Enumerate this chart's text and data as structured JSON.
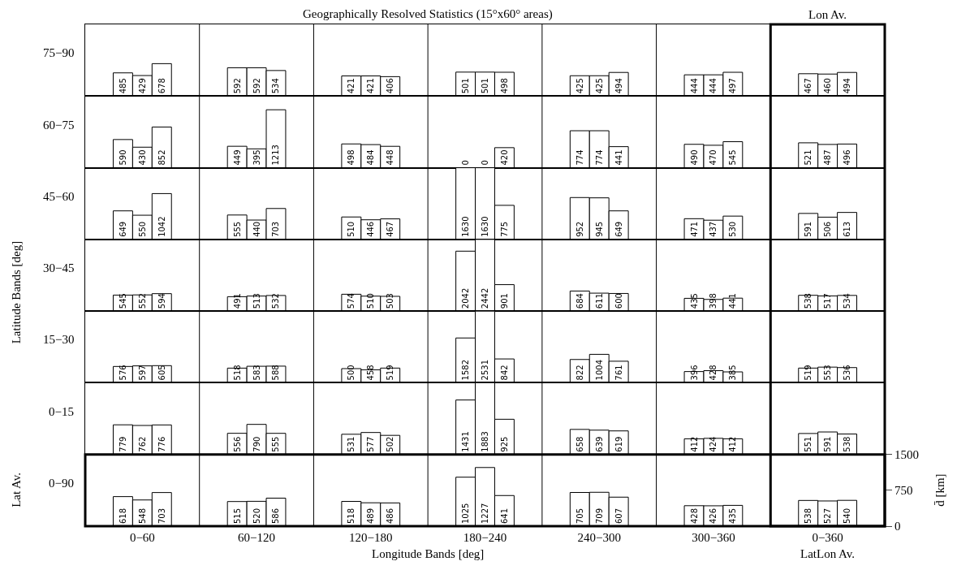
{
  "chart_data": [
    {
      "type": "bar",
      "title": "Geographically Resolved Statistics (15°x60° areas)",
      "categories": [
        null,
        null,
        null,
        null,
        null,
        null,
        null
      ],
      "data_labels": true,
      "annotations": [
        "75−90",
        "Lon Av."
      ],
      "series": [
        {
          "color": "#ffffff",
          "values": [
            485,
            592,
            421,
            501,
            425,
            444,
            467
          ]
        },
        {
          "color": "#ffffff",
          "values": [
            429,
            592,
            421,
            501,
            425,
            444,
            460
          ]
        },
        {
          "color": "#ffffff",
          "values": [
            678,
            534,
            406,
            498,
            494,
            497,
            494
          ]
        }
      ]
    },
    {
      "type": "bar",
      "categories": [
        null,
        null,
        null,
        null,
        null,
        null,
        null
      ],
      "data_labels": true,
      "annotations": [
        "60−75"
      ],
      "series": [
        {
          "color": "#ffffff",
          "values": [
            590,
            449,
            498,
            0,
            774,
            490,
            521
          ]
        },
        {
          "color": "#ffffff",
          "values": [
            430,
            395,
            484,
            0,
            774,
            470,
            487
          ]
        },
        {
          "color": "#ffffff",
          "values": [
            852,
            1213,
            448,
            420,
            441,
            545,
            496
          ]
        }
      ]
    },
    {
      "type": "bar",
      "categories": [
        null,
        null,
        null,
        null,
        null,
        null,
        null
      ],
      "data_labels": true,
      "annotations": [
        "45−60"
      ],
      "series": [
        {
          "color": "#ffffff",
          "values": [
            649,
            555,
            510,
            1630,
            952,
            471,
            591
          ]
        },
        {
          "color": "#ffffff",
          "values": [
            550,
            440,
            446,
            1630,
            945,
            437,
            506
          ]
        },
        {
          "color": "#ffffff",
          "values": [
            1042,
            703,
            467,
            775,
            649,
            530,
            613
          ]
        }
      ]
    },
    {
      "type": "bar",
      "categories": [
        null,
        null,
        null,
        null,
        null,
        null,
        null
      ],
      "data_labels": true,
      "annotations": [
        "30−45",
        "Latitude Bands [deg]"
      ],
      "series": [
        {
          "color": "#ffffff",
          "values": [
            545,
            491,
            574,
            2042,
            684,
            435,
            538
          ]
        },
        {
          "color": "#ffffff",
          "values": [
            552,
            513,
            510,
            2442,
            611,
            398,
            517
          ]
        },
        {
          "color": "#ffffff",
          "values": [
            594,
            532,
            503,
            901,
            600,
            441,
            534
          ]
        }
      ]
    },
    {
      "type": "bar",
      "categories": [
        null,
        null,
        null,
        null,
        null,
        null,
        null
      ],
      "data_labels": true,
      "annotations": [
        "15−30"
      ],
      "series": [
        {
          "color": "#ffffff",
          "values": [
            576,
            518,
            500,
            1582,
            822,
            396,
            519
          ]
        },
        {
          "color": "#ffffff",
          "values": [
            597,
            583,
            458,
            2531,
            1004,
            428,
            553
          ]
        },
        {
          "color": "#ffffff",
          "values": [
            605,
            588,
            519,
            842,
            761,
            385,
            536
          ]
        }
      ]
    },
    {
      "type": "bar",
      "categories": [
        null,
        null,
        null,
        null,
        null,
        null,
        null
      ],
      "data_labels": true,
      "annotations": [
        "0−15"
      ],
      "series": [
        {
          "color": "#ffffff",
          "values": [
            779,
            556,
            531,
            1431,
            658,
            412,
            551
          ]
        },
        {
          "color": "#ffffff",
          "values": [
            762,
            790,
            577,
            1883,
            639,
            424,
            591
          ]
        },
        {
          "color": "#ffffff",
          "values": [
            776,
            555,
            502,
            925,
            619,
            412,
            538
          ]
        }
      ]
    },
    {
      "type": "bar",
      "xlabel": "Longitude Bands [deg]",
      "ylabel": "d̄ [km]",
      "categories": [
        "0−60",
        "60−120",
        "120−180",
        "180−240",
        "240−300",
        "300−360",
        "0−360"
      ],
      "ylim": [
        0,
        1500
      ],
      "yticks": [
        0,
        750,
        1500
      ],
      "data_labels": true,
      "annotations": [
        "0−90",
        "Lat Av.",
        "LatLon Av."
      ],
      "series": [
        {
          "color": "#ffffff",
          "values": [
            618,
            515,
            518,
            1025,
            705,
            428,
            538
          ]
        },
        {
          "color": "#ffffff",
          "values": [
            548,
            520,
            489,
            1227,
            709,
            426,
            527
          ]
        },
        {
          "color": "#ffffff",
          "values": [
            703,
            586,
            486,
            641,
            607,
            435,
            540
          ]
        }
      ]
    }
  ]
}
